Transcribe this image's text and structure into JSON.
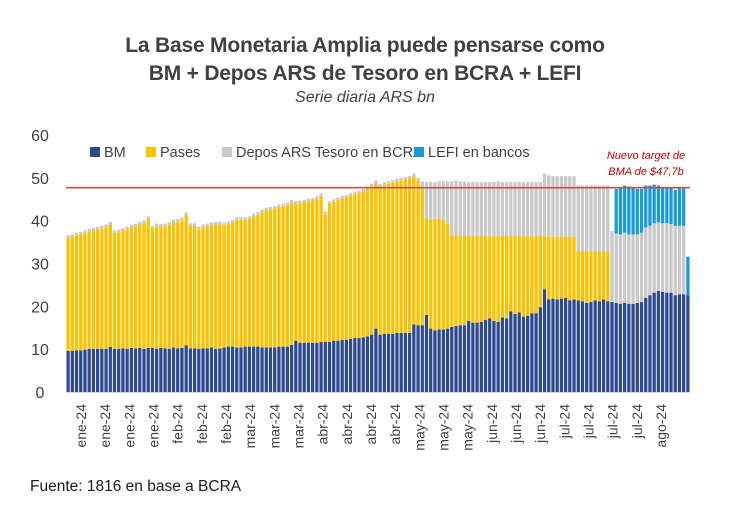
{
  "chart_data": {
    "type": "bar",
    "stacked": true,
    "title": "La Base Monetaria Amplia puede pensarse como BM + Depos ARS de Tesoro en BCRA + LEFI",
    "title_lines": [
      "La Base Monetaria Amplia puede pensarse como",
      "BM + Depos ARS de Tesoro en BCRA + LEFI"
    ],
    "subtitle": "Serie diaria ARS bn",
    "xlabel": "",
    "ylabel": "",
    "ylim": [
      0,
      60
    ],
    "yticks": [
      0,
      10,
      20,
      30,
      40,
      50,
      60
    ],
    "grid": false,
    "legend_position": "top",
    "x_tick_labels": [
      "ene-24",
      "ene-24",
      "ene-24",
      "ene-24",
      "feb-24",
      "feb-24",
      "feb-24",
      "mar-24",
      "mar-24",
      "mar-24",
      "abr-24",
      "abr-24",
      "abr-24",
      "abr-24",
      "may-24",
      "may-24",
      "may-24",
      "jun-24",
      "jun-24",
      "jun-24",
      "jul-24",
      "jul-24",
      "jul-24",
      "jul-24",
      "ago-24"
    ],
    "reference_line": {
      "value": 47.7,
      "color": "#c0504d",
      "label": "Nuevo target de BMA de $47,7b",
      "label_lines": [
        "Nuevo target de",
        "BMA de $47,7b"
      ]
    },
    "source": "Fuente: 1816 en base a BCRA",
    "series": [
      {
        "name": "BM",
        "color": "#2f4a8f",
        "values": [
          9.6,
          9.6,
          9.7,
          9.7,
          9.9,
          10.1,
          10.1,
          10.1,
          10.1,
          10.1,
          10.5,
          10.1,
          10.1,
          10.2,
          10.1,
          10.3,
          10.2,
          10.3,
          10.1,
          10.3,
          10.3,
          10.1,
          10.3,
          10.2,
          10.1,
          10.4,
          10.2,
          10.3,
          10.9,
          10.2,
          10.2,
          10.1,
          10.2,
          10.2,
          10.4,
          10.1,
          10.2,
          10.4,
          10.6,
          10.6,
          10.4,
          10.4,
          10.6,
          10.6,
          10.6,
          10.6,
          10.4,
          10.4,
          10.4,
          10.4,
          10.6,
          10.6,
          10.6,
          11.0,
          12.0,
          11.5,
          11.5,
          11.5,
          11.5,
          11.5,
          11.7,
          11.7,
          11.7,
          12.0,
          12.0,
          12.2,
          12.2,
          12.4,
          12.6,
          12.6,
          12.8,
          13.0,
          13.4,
          14.8,
          13.4,
          13.6,
          13.6,
          13.6,
          13.8,
          13.8,
          13.8,
          13.8,
          15.8,
          15.6,
          15.6,
          18.0,
          14.8,
          14.4,
          14.6,
          14.6,
          14.8,
          15.2,
          15.4,
          15.6,
          15.6,
          16.6,
          16.2,
          16.2,
          16.4,
          16.8,
          17.2,
          16.6,
          16.4,
          17.4,
          17.2,
          18.8,
          18.2,
          18.6,
          17.6,
          17.8,
          18.4,
          18.4,
          19.8,
          24.0,
          21.6,
          21.8,
          21.6,
          21.8,
          22.0,
          21.4,
          21.6,
          21.4,
          21.2,
          20.8,
          21.0,
          21.4,
          21.2,
          21.6,
          21.2,
          21.0,
          20.8,
          20.6,
          20.8,
          20.6,
          20.6,
          20.8,
          21.0,
          22.0,
          22.6,
          23.2,
          23.6,
          23.4,
          23.2,
          23.2,
          22.6,
          22.8,
          22.8,
          22.6
        ]
      },
      {
        "name": "Pases",
        "color": "#ffc000",
        "values": [
          26.4,
          26.6,
          26.9,
          27.1,
          27.2,
          27.4,
          27.6,
          27.9,
          28.1,
          28.4,
          28.6,
          27.0,
          27.2,
          27.5,
          27.9,
          28.2,
          28.5,
          28.8,
          29.4,
          30.1,
          27.9,
          28.6,
          28.3,
          28.5,
          28.9,
          29.2,
          29.6,
          29.8,
          30.4,
          28.6,
          28.6,
          27.9,
          28.3,
          28.5,
          28.6,
          29.0,
          29.0,
          28.6,
          28.6,
          29.0,
          29.8,
          29.8,
          29.6,
          29.8,
          30.4,
          30.8,
          31.6,
          32.0,
          32.2,
          32.4,
          32.6,
          32.8,
          33.0,
          33.2,
          32.0,
          32.6,
          32.8,
          33.0,
          33.2,
          33.6,
          34.0,
          29.8,
          32.2,
          32.4,
          32.8,
          33.0,
          33.2,
          33.4,
          33.6,
          33.8,
          34.0,
          34.4,
          34.6,
          34.0,
          34.6,
          34.8,
          35.0,
          35.2,
          35.4,
          35.6,
          35.8,
          36.0,
          34.6,
          33.8,
          32.0,
          22.6,
          25.4,
          26.0,
          25.8,
          25.6,
          24.6,
          21.4,
          21.2,
          20.8,
          20.8,
          19.8,
          20.2,
          20.2,
          20.0,
          19.6,
          19.2,
          19.8,
          20.0,
          19.0,
          19.2,
          17.6,
          18.2,
          17.8,
          18.8,
          18.6,
          18.0,
          18.0,
          16.6,
          12.4,
          14.6,
          14.4,
          14.6,
          14.4,
          14.2,
          14.8,
          14.6,
          11.4,
          11.6,
          12.0,
          11.8,
          11.4,
          11.6,
          11.2,
          11.6,
          0,
          0,
          0,
          0,
          0,
          0,
          0,
          0,
          0,
          0,
          0,
          0,
          0,
          0,
          0,
          0,
          0,
          0
        ]
      },
      {
        "name": "Depos ARS Tesoro en BCRA",
        "color": "#c9c9c9",
        "values": [
          0.6,
          0.6,
          0.6,
          0.6,
          0.6,
          0.6,
          0.6,
          0.6,
          0.6,
          0.6,
          0.6,
          0.6,
          0.6,
          0.6,
          0.6,
          0.6,
          0.6,
          0.6,
          0.6,
          0.6,
          0.6,
          0.6,
          0.6,
          0.6,
          0.6,
          0.6,
          0.6,
          0.6,
          0.6,
          0.6,
          0.6,
          0.6,
          0.6,
          0.6,
          0.6,
          0.6,
          0.6,
          0.6,
          0.6,
          0.6,
          0.6,
          0.6,
          0.6,
          0.6,
          0.6,
          0.6,
          0.6,
          0.6,
          0.6,
          0.6,
          0.6,
          0.6,
          0.6,
          0.6,
          0.6,
          0.6,
          0.6,
          0.6,
          0.6,
          0.6,
          0.6,
          0.6,
          0.6,
          0.6,
          0.6,
          0.6,
          0.6,
          0.6,
          0.6,
          0.6,
          0.6,
          0.6,
          0.6,
          0.6,
          0.6,
          0.6,
          0.6,
          0.6,
          0.6,
          0.6,
          0.6,
          0.6,
          0.6,
          0.6,
          1.6,
          8.4,
          8.8,
          8.6,
          8.8,
          9.0,
          9.8,
          12.6,
          12.8,
          12.8,
          12.8,
          12.6,
          12.6,
          12.6,
          12.6,
          12.6,
          12.6,
          12.6,
          12.8,
          12.6,
          12.6,
          12.6,
          12.6,
          12.6,
          12.6,
          12.6,
          12.6,
          12.6,
          12.6,
          14.6,
          14.4,
          14.2,
          14.2,
          14.2,
          14.2,
          14.2,
          14.2,
          15.4,
          15.4,
          15.4,
          15.4,
          15.4,
          15.4,
          15.4,
          15.4,
          16.6,
          16.2,
          16.2,
          16.4,
          16.2,
          16.2,
          16.0,
          16.2,
          16.4,
          16.2,
          16.2,
          16.0,
          16.0,
          16.2,
          16.0,
          16.2,
          16.0,
          16.0
        ]
      },
      {
        "name": "LEFI en bancos",
        "color": "#1a9bd7",
        "values": [
          0,
          0,
          0,
          0,
          0,
          0,
          0,
          0,
          0,
          0,
          0,
          0,
          0,
          0,
          0,
          0,
          0,
          0,
          0,
          0,
          0,
          0,
          0,
          0,
          0,
          0,
          0,
          0,
          0,
          0,
          0,
          0,
          0,
          0,
          0,
          0,
          0,
          0,
          0,
          0,
          0,
          0,
          0,
          0,
          0,
          0,
          0,
          0,
          0,
          0,
          0,
          0,
          0,
          0,
          0,
          0,
          0,
          0,
          0,
          0,
          0,
          0,
          0,
          0,
          0,
          0,
          0,
          0,
          0,
          0,
          0,
          0,
          0,
          0,
          0,
          0,
          0,
          0,
          0,
          0,
          0,
          0,
          0,
          0,
          0,
          0,
          0,
          0,
          0,
          0,
          0,
          0,
          0,
          0,
          0,
          0,
          0,
          0,
          0,
          0,
          0,
          0,
          0,
          0,
          0,
          0,
          0,
          0,
          0,
          0,
          0,
          0,
          0,
          0,
          0,
          0,
          0,
          0,
          0,
          0,
          0,
          0,
          0,
          0,
          0,
          0,
          0,
          0,
          0,
          0,
          10.4,
          10.8,
          11.0,
          11.2,
          11.0,
          10.6,
          10.2,
          9.8,
          9.4,
          9.0,
          8.6,
          8.2,
          8.2,
          8.6,
          8.4,
          8.8,
          8.8,
          9.0
        ]
      }
    ]
  },
  "header": {
    "title_line1": "La Base Monetaria Amplia puede pensarse como",
    "title_line2": "BM + Depos ARS de Tesoro en BCRA + LEFI",
    "subtitle": "Serie diaria ARS bn"
  },
  "legend": {
    "items": [
      {
        "label": "BM",
        "color": "#2f4a8f"
      },
      {
        "label": "Pases",
        "color": "#ffc000"
      },
      {
        "label": "Depos ARS Tesoro en BCRA",
        "color": "#c9c9c9"
      },
      {
        "label": "LEFI en bancos",
        "color": "#1a9bd7"
      }
    ]
  },
  "annotation": {
    "line1": "Nuevo target de",
    "line2": "BMA de $47,7b"
  },
  "footer": {
    "source": "Fuente: 1816 en base a BCRA"
  }
}
